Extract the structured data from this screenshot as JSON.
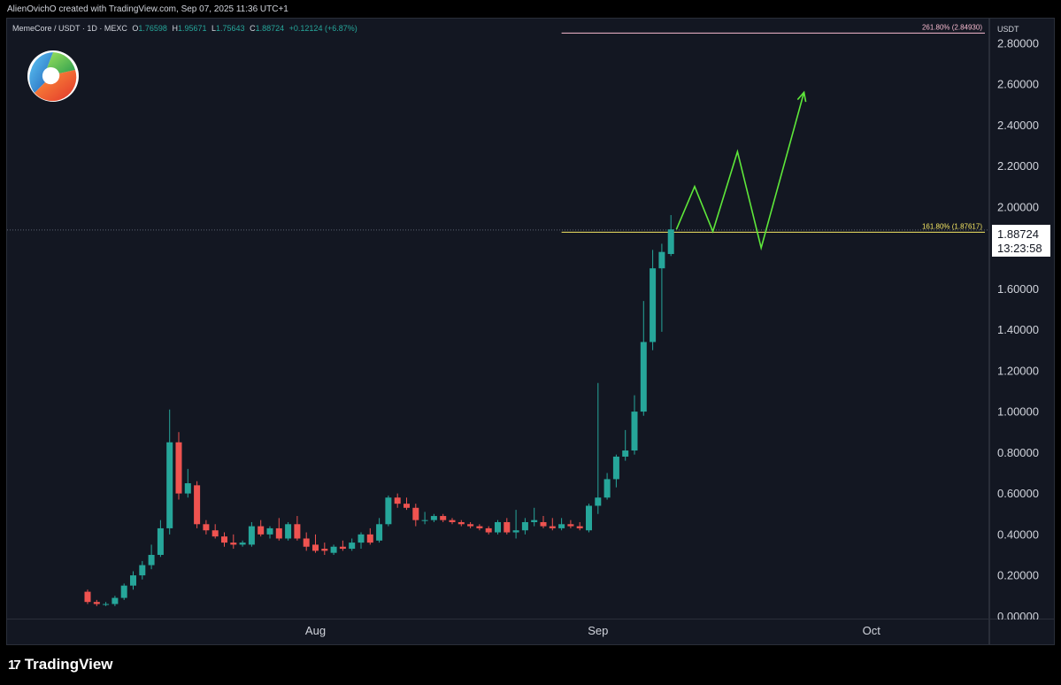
{
  "header": {
    "attribution": "AlienOvichO created with TradingView.com, Sep 07, 2025 11:36 UTC+1"
  },
  "legend": {
    "symbol": "MemeCore / USDT · 1D · MEXC",
    "open_key": "O",
    "open": "1.76598",
    "high_key": "H",
    "high": "1.95671",
    "low_key": "L",
    "low": "1.75643",
    "close_key": "C",
    "close": "1.88724",
    "change": "+0.12124 (+6.87%)"
  },
  "price_axis": {
    "currency": "USDT"
  },
  "price_tag": {
    "price": "1.88724",
    "countdown": "13:23:58"
  },
  "brand": {
    "mark": "17",
    "name": "TradingView"
  },
  "colors": {
    "up": "#26a69a",
    "down": "#ef5350",
    "fib_high": "#f8bbd0",
    "fib_low": "#f5e663",
    "projection": "#5ee83a"
  },
  "chart_data": {
    "type": "candlestick",
    "ylim": [
      -0.02,
      2.92
    ],
    "y_ticks": [
      "0.00000",
      "0.20000",
      "0.40000",
      "0.60000",
      "0.80000",
      "1.00000",
      "1.20000",
      "1.40000",
      "1.60000",
      "1.80000",
      "2.00000",
      "2.20000",
      "2.40000",
      "2.60000",
      "2.80000"
    ],
    "x_start_date": "2025-07-07",
    "x_ticks": [
      {
        "day": 25,
        "label": "Aug"
      },
      {
        "day": 56,
        "label": "Sep"
      },
      {
        "day": 86,
        "label": "Oct"
      }
    ],
    "candles": [
      {
        "o": 0.12,
        "h": 0.13,
        "l": 0.06,
        "c": 0.07
      },
      {
        "o": 0.07,
        "h": 0.08,
        "l": 0.05,
        "c": 0.06
      },
      {
        "o": 0.06,
        "h": 0.07,
        "l": 0.05,
        "c": 0.06
      },
      {
        "o": 0.06,
        "h": 0.1,
        "l": 0.05,
        "c": 0.09
      },
      {
        "o": 0.09,
        "h": 0.16,
        "l": 0.08,
        "c": 0.15
      },
      {
        "o": 0.15,
        "h": 0.22,
        "l": 0.13,
        "c": 0.2
      },
      {
        "o": 0.2,
        "h": 0.27,
        "l": 0.18,
        "c": 0.25
      },
      {
        "o": 0.25,
        "h": 0.35,
        "l": 0.23,
        "c": 0.3
      },
      {
        "o": 0.3,
        "h": 0.47,
        "l": 0.29,
        "c": 0.43
      },
      {
        "o": 0.43,
        "h": 1.01,
        "l": 0.4,
        "c": 0.85
      },
      {
        "o": 0.85,
        "h": 0.9,
        "l": 0.57,
        "c": 0.6
      },
      {
        "o": 0.6,
        "h": 0.72,
        "l": 0.58,
        "c": 0.65
      },
      {
        "o": 0.64,
        "h": 0.66,
        "l": 0.43,
        "c": 0.45
      },
      {
        "o": 0.45,
        "h": 0.47,
        "l": 0.4,
        "c": 0.42
      },
      {
        "o": 0.42,
        "h": 0.45,
        "l": 0.38,
        "c": 0.39
      },
      {
        "o": 0.39,
        "h": 0.41,
        "l": 0.34,
        "c": 0.36
      },
      {
        "o": 0.36,
        "h": 0.4,
        "l": 0.33,
        "c": 0.35
      },
      {
        "o": 0.35,
        "h": 0.37,
        "l": 0.34,
        "c": 0.36
      },
      {
        "o": 0.35,
        "h": 0.46,
        "l": 0.34,
        "c": 0.44
      },
      {
        "o": 0.44,
        "h": 0.47,
        "l": 0.39,
        "c": 0.4
      },
      {
        "o": 0.4,
        "h": 0.44,
        "l": 0.38,
        "c": 0.43
      },
      {
        "o": 0.43,
        "h": 0.48,
        "l": 0.37,
        "c": 0.38
      },
      {
        "o": 0.38,
        "h": 0.46,
        "l": 0.37,
        "c": 0.45
      },
      {
        "o": 0.45,
        "h": 0.49,
        "l": 0.37,
        "c": 0.38
      },
      {
        "o": 0.38,
        "h": 0.41,
        "l": 0.32,
        "c": 0.34
      },
      {
        "o": 0.35,
        "h": 0.4,
        "l": 0.31,
        "c": 0.32
      },
      {
        "o": 0.33,
        "h": 0.36,
        "l": 0.3,
        "c": 0.32
      },
      {
        "o": 0.31,
        "h": 0.35,
        "l": 0.3,
        "c": 0.34
      },
      {
        "o": 0.34,
        "h": 0.37,
        "l": 0.32,
        "c": 0.33
      },
      {
        "o": 0.33,
        "h": 0.38,
        "l": 0.32,
        "c": 0.36
      },
      {
        "o": 0.36,
        "h": 0.41,
        "l": 0.33,
        "c": 0.4
      },
      {
        "o": 0.4,
        "h": 0.43,
        "l": 0.35,
        "c": 0.36
      },
      {
        "o": 0.37,
        "h": 0.48,
        "l": 0.36,
        "c": 0.45
      },
      {
        "o": 0.45,
        "h": 0.59,
        "l": 0.44,
        "c": 0.58
      },
      {
        "o": 0.58,
        "h": 0.6,
        "l": 0.53,
        "c": 0.55
      },
      {
        "o": 0.55,
        "h": 0.58,
        "l": 0.52,
        "c": 0.53
      },
      {
        "o": 0.53,
        "h": 0.55,
        "l": 0.44,
        "c": 0.47
      },
      {
        "o": 0.47,
        "h": 0.51,
        "l": 0.45,
        "c": 0.47
      },
      {
        "o": 0.47,
        "h": 0.5,
        "l": 0.46,
        "c": 0.49
      },
      {
        "o": 0.49,
        "h": 0.5,
        "l": 0.46,
        "c": 0.47
      },
      {
        "o": 0.47,
        "h": 0.48,
        "l": 0.45,
        "c": 0.46
      },
      {
        "o": 0.46,
        "h": 0.47,
        "l": 0.44,
        "c": 0.45
      },
      {
        "o": 0.45,
        "h": 0.46,
        "l": 0.43,
        "c": 0.44
      },
      {
        "o": 0.44,
        "h": 0.45,
        "l": 0.42,
        "c": 0.43
      },
      {
        "o": 0.43,
        "h": 0.44,
        "l": 0.4,
        "c": 0.41
      },
      {
        "o": 0.41,
        "h": 0.47,
        "l": 0.4,
        "c": 0.46
      },
      {
        "o": 0.46,
        "h": 0.48,
        "l": 0.4,
        "c": 0.41
      },
      {
        "o": 0.41,
        "h": 0.52,
        "l": 0.38,
        "c": 0.42
      },
      {
        "o": 0.42,
        "h": 0.48,
        "l": 0.4,
        "c": 0.46
      },
      {
        "o": 0.46,
        "h": 0.53,
        "l": 0.44,
        "c": 0.47
      },
      {
        "o": 0.46,
        "h": 0.49,
        "l": 0.43,
        "c": 0.44
      },
      {
        "o": 0.44,
        "h": 0.48,
        "l": 0.42,
        "c": 0.43
      },
      {
        "o": 0.43,
        "h": 0.48,
        "l": 0.42,
        "c": 0.45
      },
      {
        "o": 0.45,
        "h": 0.47,
        "l": 0.43,
        "c": 0.44
      },
      {
        "o": 0.44,
        "h": 0.46,
        "l": 0.42,
        "c": 0.43
      },
      {
        "o": 0.42,
        "h": 0.55,
        "l": 0.41,
        "c": 0.54
      },
      {
        "o": 0.54,
        "h": 1.14,
        "l": 0.5,
        "c": 0.58
      },
      {
        "o": 0.58,
        "h": 0.7,
        "l": 0.57,
        "c": 0.67
      },
      {
        "o": 0.67,
        "h": 0.79,
        "l": 0.63,
        "c": 0.78
      },
      {
        "o": 0.78,
        "h": 0.91,
        "l": 0.76,
        "c": 0.81
      },
      {
        "o": 0.81,
        "h": 1.08,
        "l": 0.79,
        "c": 1.0
      },
      {
        "o": 1.0,
        "h": 1.54,
        "l": 0.98,
        "c": 1.34
      },
      {
        "o": 1.34,
        "h": 1.79,
        "l": 1.3,
        "c": 1.7
      },
      {
        "o": 1.7,
        "h": 1.82,
        "l": 1.39,
        "c": 1.78
      },
      {
        "o": 1.77,
        "h": 1.96,
        "l": 1.76,
        "c": 1.89
      }
    ],
    "fib_levels": [
      {
        "label": "261.80% (2.84930)",
        "value": 2.8493,
        "color": "#f8bbd0",
        "x_from_day": 52
      },
      {
        "label": "161.80% (1.87617)",
        "value": 1.87617,
        "color": "#f5e663",
        "x_from_day": 52
      }
    ],
    "last_price": 1.88724,
    "projection": [
      {
        "day": 64.6,
        "value": 1.89
      },
      {
        "day": 66.6,
        "value": 2.1
      },
      {
        "day": 68.6,
        "value": 1.88
      },
      {
        "day": 71.3,
        "value": 2.27
      },
      {
        "day": 73.9,
        "value": 1.8
      },
      {
        "day": 78.6,
        "value": 2.56
      }
    ]
  }
}
